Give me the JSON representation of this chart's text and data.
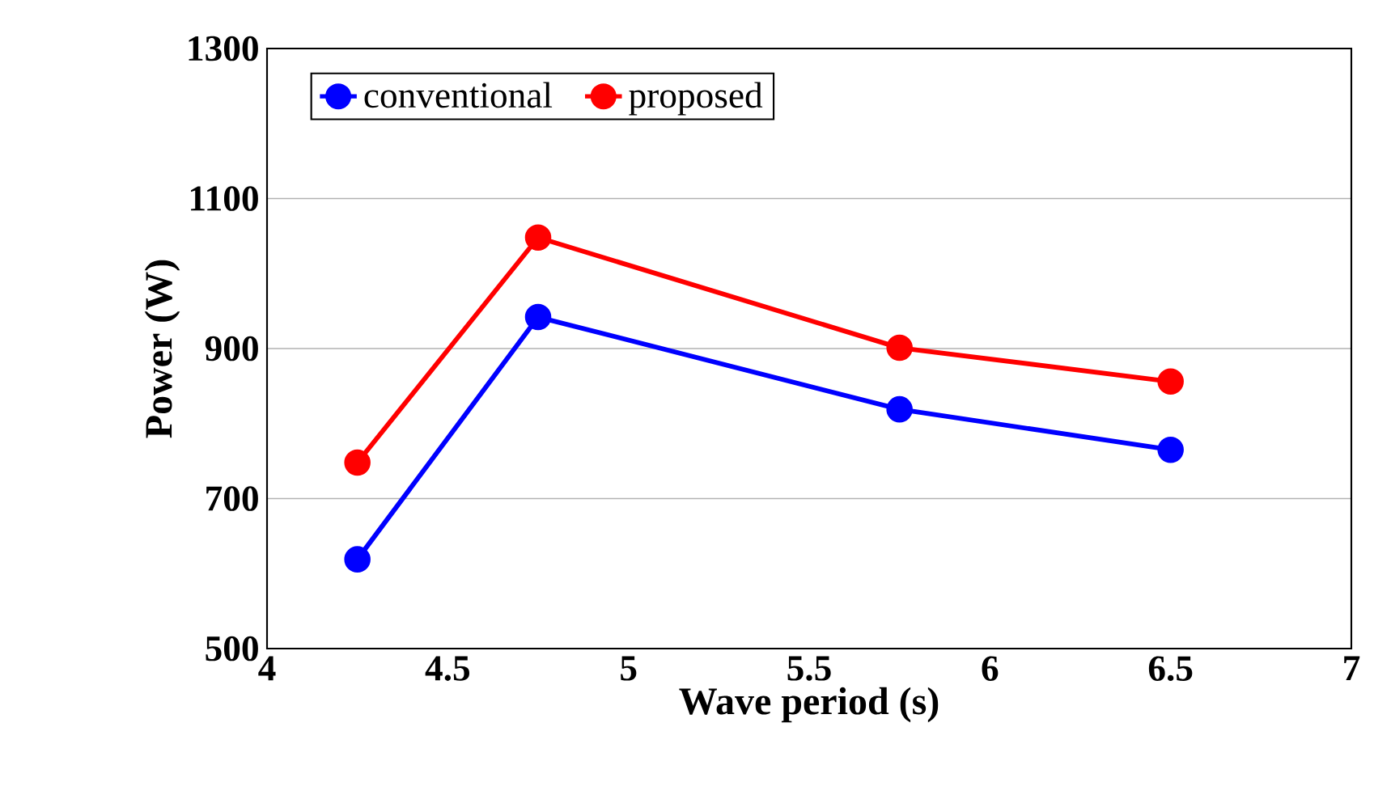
{
  "chart_data": {
    "type": "line",
    "xlabel": "Wave period (s)",
    "ylabel": "Power (W)",
    "x": [
      4.25,
      4.75,
      5.75,
      6.5
    ],
    "series": [
      {
        "name": "conventional",
        "color": "#0000ff",
        "values": [
          619,
          942,
          819,
          765
        ]
      },
      {
        "name": "proposed",
        "color": "#ff0000",
        "values": [
          748,
          1048,
          901,
          856
        ]
      }
    ],
    "xlim": [
      4,
      7
    ],
    "xticks": [
      4,
      4.5,
      5,
      5.5,
      6,
      6.5,
      7
    ],
    "ylim": [
      500,
      1300
    ],
    "yticks": [
      500,
      700,
      900,
      1100,
      1300
    ],
    "grid": "y",
    "legend": "top left",
    "marker": "circle",
    "line_style": "solid"
  }
}
